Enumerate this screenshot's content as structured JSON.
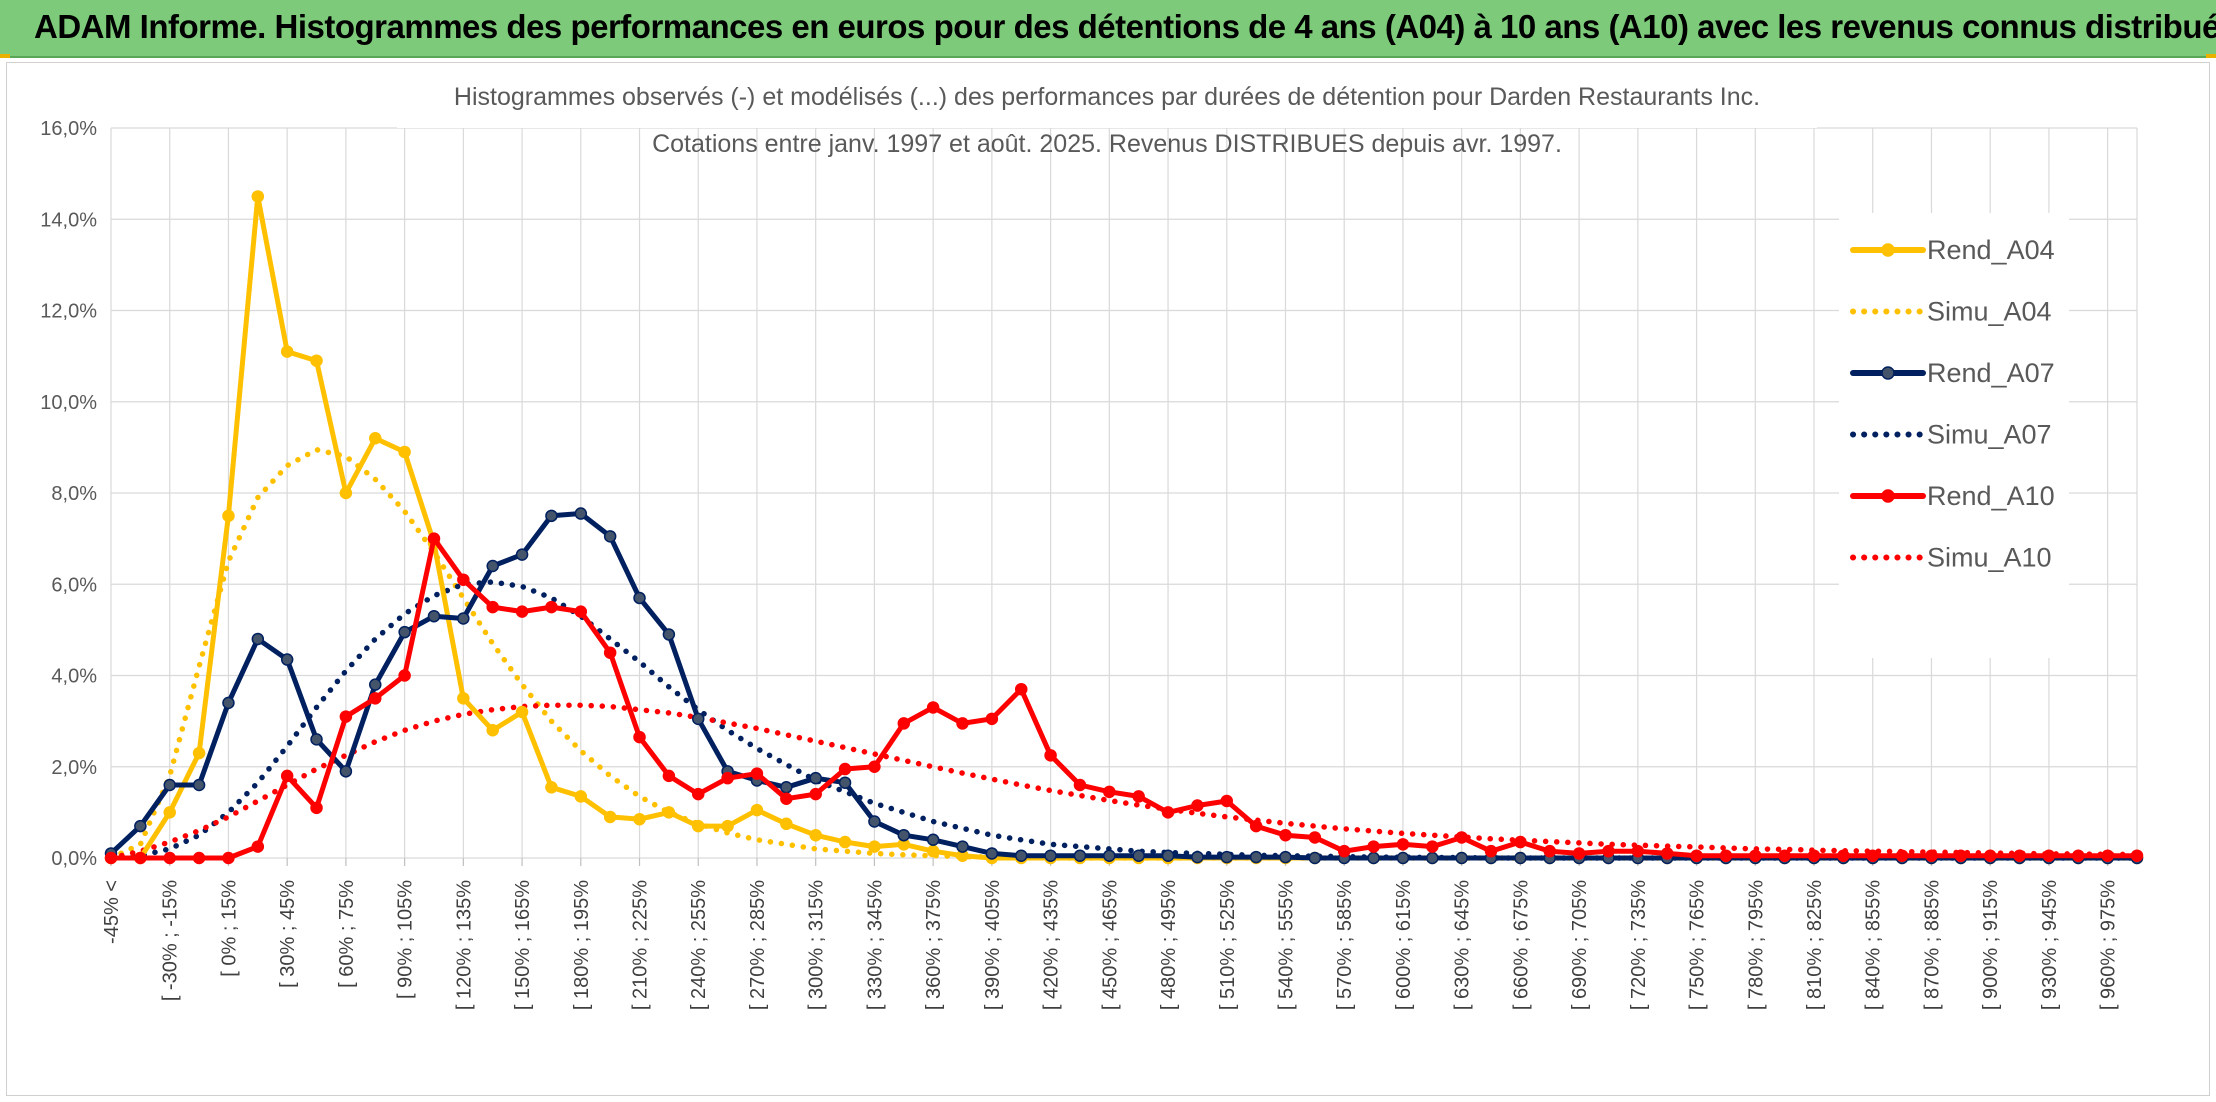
{
  "banner": {
    "title": "ADAM Informe. Histogrammes des performances en euros pour des détentions de 4 ans (A04) à 10 ans (A10) avec les revenus connus distribués"
  },
  "chart_data": {
    "type": "line",
    "title": "Histogrammes observés (-) et modélisés (...) des performances par durées de détention pour Darden Restaurants Inc.",
    "subtitle": "Cotations entre janv. 1997 et août. 2025. Revenus DISTRIBUES depuis avr. 1997.",
    "xlabel": "",
    "ylabel": "",
    "ylim": [
      0,
      16
    ],
    "y_ticks": [
      "0,0%",
      "2,0%",
      "4,0%",
      "6,0%",
      "8,0%",
      "10,0%",
      "12,0%",
      "14,0%",
      "16,0%"
    ],
    "grid": true,
    "legend_position": "right",
    "x_tick_labels": [
      "-45% <",
      "[ -30% ; -15%",
      "[ 0% ; 15%",
      "[ 30% ; 45%",
      "[ 60% ; 75%",
      "[ 90% ; 105%",
      "[ 120% ; 135%",
      "[ 150% ; 165%",
      "[ 180% ; 195%",
      "[ 210% ; 225%",
      "[ 240% ; 255%",
      "[ 270% ; 285%",
      "[ 300% ; 315%",
      "[ 330% ; 345%",
      "[ 360% ; 375%",
      "[ 390% ; 405%",
      "[ 420% ; 435%",
      "[ 450% ; 465%",
      "[ 480% ; 495%",
      "[ 510% ; 525%",
      "[ 540% ; 555%",
      "[ 570% ; 585%",
      "[ 600% ; 615%",
      "[ 630% ; 645%",
      "[ 660% ; 675%",
      "[ 690% ; 705%",
      "[ 720% ; 735%",
      "[ 750% ; 765%",
      "[ 780% ; 795%",
      "[ 810% ; 825%",
      "[ 840% ; 855%",
      "[ 870% ; 885%",
      "[ 900% ; 915%",
      "[ 930% ; 945%",
      "[ 960% ; 975%"
    ],
    "series": [
      {
        "name": "Rend_A04",
        "color": "#FFC000",
        "style": "solid",
        "markers": true,
        "values": [
          0.0,
          0.0,
          1.0,
          2.3,
          7.5,
          14.5,
          11.1,
          10.9,
          8.0,
          9.2,
          8.9,
          6.9,
          3.5,
          2.8,
          3.2,
          1.55,
          1.35,
          0.9,
          0.85,
          1.0,
          0.7,
          0.7,
          1.05,
          0.75,
          0.5,
          0.35,
          0.25,
          0.3,
          0.15,
          0.05,
          0.0,
          0.0,
          0.0,
          0.0,
          0.0,
          0.0,
          0.0,
          0.0,
          0.0,
          0.0,
          0.0,
          0.0,
          0.0,
          0.0,
          0.0,
          0.0,
          0.0,
          0.0,
          0.0,
          0.0,
          0.0,
          0.0,
          0.0,
          0.0,
          0.0,
          0.0,
          0.0,
          0.0,
          0.0,
          0.0,
          0.0,
          0.0,
          0.0,
          0.0,
          0.0,
          0.0,
          0.0,
          0.0,
          0.0,
          0.0
        ]
      },
      {
        "name": "Simu_A04",
        "color": "#FFC000",
        "style": "dotted",
        "markers": false,
        "values": [
          0.0,
          0.3,
          1.8,
          4.2,
          6.5,
          7.9,
          8.6,
          8.95,
          8.8,
          8.3,
          7.6,
          6.7,
          5.7,
          4.7,
          3.8,
          3.0,
          2.35,
          1.8,
          1.35,
          1.0,
          0.75,
          0.55,
          0.4,
          0.3,
          0.2,
          0.15,
          0.1,
          0.07,
          0.05,
          0.03,
          0.02,
          0.01,
          0.0,
          0.0,
          0.0,
          0.0,
          0.0,
          0.0,
          0.0,
          0.0,
          0.0,
          0.0,
          0.0,
          0.0,
          0.0,
          0.0,
          0.0,
          0.0,
          0.0,
          0.0,
          0.0,
          0.0,
          0.0,
          0.0,
          0.0,
          0.0,
          0.0,
          0.0,
          0.0,
          0.0,
          0.0,
          0.0,
          0.0,
          0.0,
          0.0,
          0.0,
          0.0,
          0.0,
          0.0,
          0.0
        ]
      },
      {
        "name": "Rend_A07",
        "color": "#002060",
        "style": "solid",
        "markers": true,
        "values": [
          0.1,
          0.7,
          1.6,
          1.6,
          3.4,
          4.8,
          4.35,
          2.6,
          1.9,
          3.8,
          4.95,
          5.3,
          5.25,
          6.4,
          6.65,
          7.5,
          7.55,
          7.05,
          5.7,
          4.9,
          3.05,
          1.9,
          1.7,
          1.55,
          1.75,
          1.65,
          0.8,
          0.5,
          0.4,
          0.25,
          0.1,
          0.05,
          0.05,
          0.05,
          0.05,
          0.05,
          0.05,
          0.02,
          0.02,
          0.02,
          0.02,
          0.0,
          0.0,
          0.0,
          0.0,
          0.0,
          0.0,
          0.0,
          0.0,
          0.0,
          0.0,
          0.0,
          0.0,
          0.0,
          0.0,
          0.0,
          0.0,
          0.0,
          0.0,
          0.0,
          0.0,
          0.0,
          0.0,
          0.0,
          0.0,
          0.0,
          0.0,
          0.0,
          0.0,
          0.0
        ]
      },
      {
        "name": "Simu_A07",
        "color": "#002060",
        "style": "dotted",
        "markers": false,
        "values": [
          0.0,
          0.05,
          0.2,
          0.5,
          1.0,
          1.65,
          2.45,
          3.3,
          4.1,
          4.8,
          5.35,
          5.75,
          6.0,
          6.05,
          5.95,
          5.7,
          5.3,
          4.8,
          4.3,
          3.75,
          3.25,
          2.8,
          2.4,
          2.05,
          1.7,
          1.45,
          1.2,
          1.0,
          0.8,
          0.65,
          0.5,
          0.4,
          0.3,
          0.25,
          0.2,
          0.15,
          0.12,
          0.1,
          0.08,
          0.06,
          0.05,
          0.04,
          0.03,
          0.02,
          0.02,
          0.01,
          0.01,
          0.0,
          0.0,
          0.0,
          0.0,
          0.0,
          0.0,
          0.0,
          0.0,
          0.0,
          0.0,
          0.0,
          0.0,
          0.0,
          0.0,
          0.0,
          0.0,
          0.0,
          0.0,
          0.0,
          0.0,
          0.0,
          0.0,
          0.0
        ]
      },
      {
        "name": "Rend_A10",
        "color": "#FF0000",
        "style": "solid",
        "markers": true,
        "values": [
          0.0,
          0.0,
          0.0,
          0.0,
          0.0,
          0.25,
          1.8,
          1.1,
          3.1,
          3.5,
          4.0,
          7.0,
          6.1,
          5.5,
          5.4,
          5.5,
          5.4,
          4.5,
          2.65,
          1.8,
          1.4,
          1.75,
          1.85,
          1.3,
          1.4,
          1.95,
          2.0,
          2.95,
          3.3,
          2.95,
          3.05,
          3.7,
          2.25,
          1.6,
          1.45,
          1.35,
          1.0,
          1.15,
          1.25,
          0.7,
          0.5,
          0.45,
          0.15,
          0.25,
          0.3,
          0.25,
          0.45,
          0.15,
          0.35,
          0.15,
          0.1,
          0.15,
          0.15,
          0.1,
          0.05,
          0.05,
          0.05,
          0.05,
          0.05,
          0.05,
          0.05,
          0.05,
          0.05,
          0.05,
          0.05,
          0.05,
          0.05,
          0.05,
          0.05,
          0.05
        ]
      },
      {
        "name": "Simu_A10",
        "color": "#FF0000",
        "style": "dotted",
        "markers": false,
        "values": [
          0.0,
          0.15,
          0.35,
          0.6,
          0.9,
          1.25,
          1.6,
          1.95,
          2.25,
          2.55,
          2.8,
          3.0,
          3.15,
          3.25,
          3.32,
          3.35,
          3.35,
          3.32,
          3.25,
          3.18,
          3.08,
          2.96,
          2.84,
          2.7,
          2.56,
          2.42,
          2.28,
          2.14,
          2.0,
          1.86,
          1.73,
          1.6,
          1.48,
          1.37,
          1.26,
          1.16,
          1.07,
          0.98,
          0.9,
          0.83,
          0.76,
          0.7,
          0.64,
          0.59,
          0.54,
          0.5,
          0.46,
          0.42,
          0.39,
          0.36,
          0.33,
          0.3,
          0.28,
          0.26,
          0.24,
          0.22,
          0.2,
          0.19,
          0.17,
          0.16,
          0.15,
          0.14,
          0.13,
          0.12,
          0.11,
          0.1,
          0.09,
          0.09,
          0.08,
          0.08
        ]
      }
    ]
  }
}
